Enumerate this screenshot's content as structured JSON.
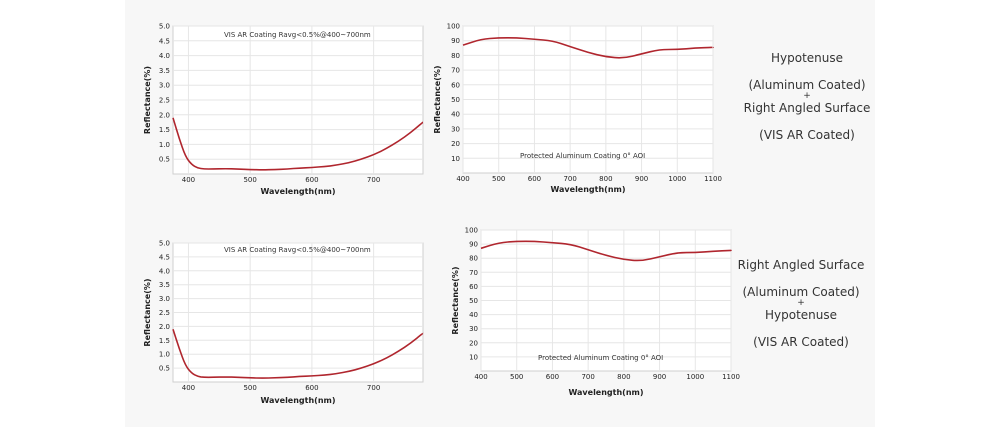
{
  "chart_data": [
    {
      "type": "line",
      "title": "VIS AR Coating Ravg<0.5%@400~700nm",
      "xlabel": "Wavelength(nm)",
      "ylabel": "Reflectance(%)",
      "xlim": [
        375,
        780
      ],
      "ylim": [
        0,
        5.0
      ],
      "xticks": [
        400,
        500,
        600,
        700
      ],
      "yticks": [
        0.5,
        1.0,
        1.5,
        2.0,
        2.5,
        3.0,
        3.5,
        4.0,
        4.5,
        5.0
      ],
      "ytick_labels": [
        "0.5",
        "1.0",
        "1.5",
        "2.0",
        "2.5",
        "3.0",
        "3.5",
        "4.0",
        "4.5",
        "5.0"
      ],
      "grid": true,
      "series": [
        {
          "name": "VIS AR Coating",
          "x": [
            375,
            385,
            395,
            405,
            415,
            425,
            440,
            460,
            480,
            500,
            520,
            540,
            560,
            580,
            600,
            620,
            640,
            660,
            680,
            700,
            720,
            740,
            760,
            780
          ],
          "y": [
            1.9,
            1.2,
            0.6,
            0.32,
            0.2,
            0.17,
            0.17,
            0.18,
            0.17,
            0.15,
            0.14,
            0.15,
            0.17,
            0.2,
            0.22,
            0.25,
            0.3,
            0.38,
            0.5,
            0.65,
            0.85,
            1.1,
            1.4,
            1.75
          ]
        }
      ]
    },
    {
      "type": "line",
      "title": "Protected Aluminum Coating  0°  AOI",
      "xlabel": "Wavelength(nm)",
      "ylabel": "Reflectance(%)",
      "xlim": [
        400,
        1100
      ],
      "ylim": [
        0,
        100
      ],
      "xticks": [
        400,
        500,
        600,
        700,
        800,
        900,
        1000,
        1100
      ],
      "yticks": [
        10,
        20,
        30,
        40,
        50,
        60,
        70,
        80,
        90,
        100
      ],
      "grid": true,
      "series": [
        {
          "name": "Protected Aluminum",
          "x": [
            400,
            450,
            500,
            550,
            600,
            650,
            700,
            750,
            800,
            850,
            900,
            950,
            1000,
            1050,
            1100
          ],
          "y": [
            87,
            91,
            92,
            92,
            91,
            90,
            86,
            82,
            79,
            78,
            81,
            84,
            84,
            85,
            85.5
          ]
        }
      ]
    },
    {
      "type": "line",
      "title": "VIS AR Coating Ravg<0.5%@400~700nm",
      "xlabel": "Wavelength(nm)",
      "ylabel": "Reflectance(%)",
      "xlim": [
        375,
        780
      ],
      "ylim": [
        0,
        5.0
      ],
      "xticks": [
        400,
        500,
        600,
        700
      ],
      "yticks": [
        0.5,
        1.0,
        1.5,
        2.0,
        2.5,
        3.0,
        3.5,
        4.0,
        4.5,
        5.0
      ],
      "ytick_labels": [
        "0.5",
        "1.0",
        "1.5",
        "2.0",
        "2.5",
        "3.0",
        "3.5",
        "4.0",
        "4.5",
        "5.0"
      ],
      "grid": true,
      "series": [
        {
          "name": "VIS AR Coating",
          "x": [
            375,
            385,
            395,
            405,
            415,
            425,
            440,
            460,
            480,
            500,
            520,
            540,
            560,
            580,
            600,
            620,
            640,
            660,
            680,
            700,
            720,
            740,
            760,
            780
          ],
          "y": [
            1.9,
            1.2,
            0.6,
            0.32,
            0.2,
            0.17,
            0.17,
            0.18,
            0.17,
            0.15,
            0.14,
            0.15,
            0.17,
            0.2,
            0.22,
            0.25,
            0.3,
            0.38,
            0.5,
            0.65,
            0.85,
            1.1,
            1.4,
            1.75
          ]
        }
      ]
    },
    {
      "type": "line",
      "title": "Protected Aluminum Coating  0°  AOI",
      "xlabel": "Wavelength(nm)",
      "ylabel": "Reflectance(%)",
      "xlim": [
        400,
        1100
      ],
      "ylim": [
        0,
        100
      ],
      "xticks": [
        400,
        500,
        600,
        700,
        800,
        900,
        1000,
        1100
      ],
      "yticks": [
        10,
        20,
        30,
        40,
        50,
        60,
        70,
        80,
        90,
        100
      ],
      "grid": true,
      "series": [
        {
          "name": "Protected Aluminum",
          "x": [
            400,
            450,
            500,
            550,
            600,
            650,
            700,
            750,
            800,
            850,
            900,
            950,
            1000,
            1050,
            1100
          ],
          "y": [
            87,
            91,
            92,
            92,
            91,
            90,
            86,
            82,
            79,
            78,
            81,
            84,
            84,
            85,
            85.5
          ]
        }
      ]
    }
  ],
  "descriptions": [
    {
      "lines": [
        "Hypotenuse",
        "(Aluminum Coated)",
        "+",
        "Right Angled Surface",
        "(VIS AR Coated)"
      ]
    },
    {
      "lines": [
        "Right Angled Surface",
        "(Aluminum Coated)",
        "+",
        "Hypotenuse",
        "(VIS AR Coated)"
      ]
    }
  ],
  "colors": {
    "curve": "#b0262e",
    "stage_bg": "#f7f7f7"
  }
}
